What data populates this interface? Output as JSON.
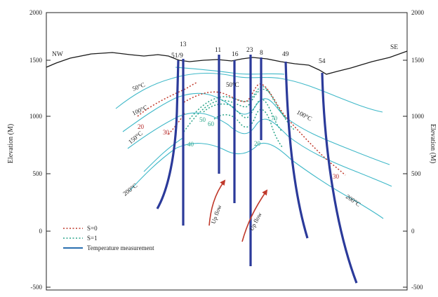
{
  "axes": {
    "left_title": "Elevation (M)",
    "right_title": "Elevation (M)",
    "left_ticks": [
      "2000",
      "1500",
      "1000",
      "500",
      "0",
      "-500"
    ],
    "right_ticks": [
      "2000",
      "1500",
      "1000",
      "500",
      "0",
      "-500"
    ]
  },
  "directions": {
    "west": "NW",
    "east": "SE"
  },
  "wells": [
    "51/9",
    "13",
    "11",
    "16",
    "23",
    "8",
    "49",
    "54"
  ],
  "isotherms": {
    "i50_left": "50°C",
    "i50_center": "50°C",
    "i100_left": "100°C",
    "i100_right": "100°C",
    "i150": "150°C",
    "i200_left": "200°C",
    "i200_right": "200°C"
  },
  "s0_values": [
    "20",
    "30",
    "30"
  ],
  "s1_values": [
    "50",
    "60",
    "40",
    "70",
    "20"
  ],
  "flow_labels": [
    "Up flow",
    "Up flow"
  ],
  "legend": {
    "s0": "S=0",
    "s1": "S=1",
    "temperature": "Temperature measurement"
  },
  "colors": {
    "frame": "#222222",
    "surface": "#1a1a1a",
    "isotherm": "#3fb8c8",
    "well": "#2b3a9a",
    "s0": "#c0392b",
    "s1": "#2aa58a",
    "flow_arrow": "#c0392b"
  }
}
